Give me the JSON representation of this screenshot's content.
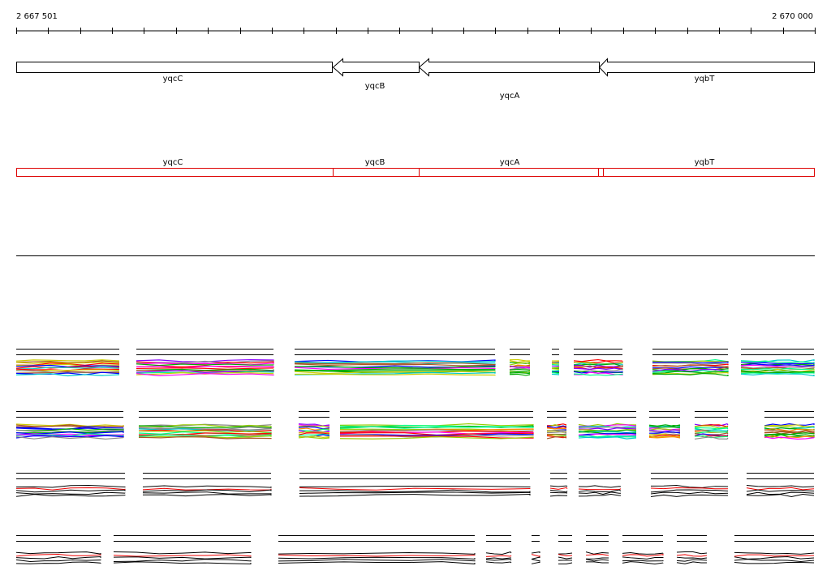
{
  "ruler": {
    "start": "2 667 501",
    "end": "2 670 000"
  },
  "genes": [
    {
      "label": "yqcC"
    },
    {
      "label": "yqcB"
    },
    {
      "label": "yqcA"
    },
    {
      "label": "yqbT"
    }
  ],
  "features": [
    {
      "label": "yqcC"
    },
    {
      "label": "yqcB"
    },
    {
      "label": "yqcA"
    },
    {
      "label": "yqbT"
    }
  ]
}
